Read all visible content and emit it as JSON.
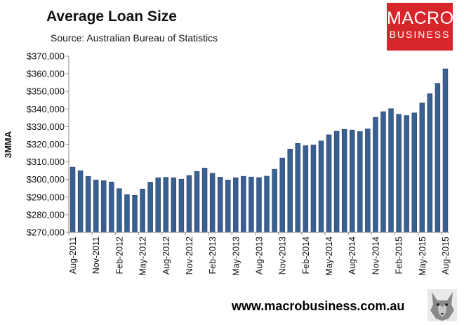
{
  "header": {
    "title": "Average Loan Size",
    "source": "Source: Australian Bureau of Statistics"
  },
  "logo": {
    "line1": "MACRO",
    "line2": "BUSINESS"
  },
  "footer": {
    "url": "www.macrobusiness.com.au"
  },
  "colors": {
    "bar": "#3a5f91",
    "bar_dark": "#24406a",
    "logo_bg": "#d7262b"
  },
  "chart_data": {
    "type": "bar",
    "title": "Average Loan Size",
    "ylabel": "3MMA",
    "xlabel": "",
    "ylim": [
      270000,
      370000
    ],
    "y_ticks": [
      "$270,000",
      "$280,000",
      "$290,000",
      "$300,000",
      "$310,000",
      "$320,000",
      "$330,000",
      "$340,000",
      "$350,000",
      "$360,000",
      "$370,000"
    ],
    "x_ticks": [
      {
        "index": 0,
        "label": "Aug-2011"
      },
      {
        "index": 3,
        "label": "Nov-2011"
      },
      {
        "index": 6,
        "label": "Feb-2012"
      },
      {
        "index": 9,
        "label": "May-2012"
      },
      {
        "index": 12,
        "label": "Aug-2012"
      },
      {
        "index": 15,
        "label": "Nov-2012"
      },
      {
        "index": 18,
        "label": "Feb-2013"
      },
      {
        "index": 21,
        "label": "May-2013"
      },
      {
        "index": 24,
        "label": "Aug-2013"
      },
      {
        "index": 27,
        "label": "Nov-2013"
      },
      {
        "index": 30,
        "label": "Feb-2014"
      },
      {
        "index": 33,
        "label": "May-2014"
      },
      {
        "index": 36,
        "label": "Aug-2014"
      },
      {
        "index": 39,
        "label": "Nov-2014"
      },
      {
        "index": 42,
        "label": "Feb-2015"
      },
      {
        "index": 45,
        "label": "May-2015"
      },
      {
        "index": 48,
        "label": "Aug-2015"
      }
    ],
    "categories": [
      "Aug-2011",
      "Sep-2011",
      "Oct-2011",
      "Nov-2011",
      "Dec-2011",
      "Jan-2012",
      "Feb-2012",
      "Mar-2012",
      "Apr-2012",
      "May-2012",
      "Jun-2012",
      "Jul-2012",
      "Aug-2012",
      "Sep-2012",
      "Oct-2012",
      "Nov-2012",
      "Dec-2012",
      "Jan-2013",
      "Feb-2013",
      "Mar-2013",
      "Apr-2013",
      "May-2013",
      "Jun-2013",
      "Jul-2013",
      "Aug-2013",
      "Sep-2013",
      "Oct-2013",
      "Nov-2013",
      "Dec-2013",
      "Jan-2014",
      "Feb-2014",
      "Mar-2014",
      "Apr-2014",
      "May-2014",
      "Jun-2014",
      "Jul-2014",
      "Aug-2014",
      "Sep-2014",
      "Oct-2014",
      "Nov-2014",
      "Dec-2014",
      "Jan-2015",
      "Feb-2015",
      "Mar-2015",
      "Apr-2015",
      "May-2015",
      "Jun-2015",
      "Jul-2015",
      "Aug-2015"
    ],
    "values": [
      307000,
      305000,
      301800,
      299700,
      299300,
      298600,
      294800,
      291400,
      291000,
      294600,
      298500,
      301000,
      301200,
      301000,
      300200,
      302300,
      304600,
      306500,
      303500,
      301300,
      299700,
      301000,
      301800,
      301400,
      301100,
      301900,
      305800,
      312200,
      317300,
      320500,
      319200,
      319600,
      321900,
      325400,
      327400,
      328500,
      328100,
      327200,
      328700,
      335300,
      338500,
      340200,
      337000,
      336300,
      337800,
      343400,
      348700,
      354600,
      362800
    ],
    "grid": false,
    "legend": "none"
  }
}
